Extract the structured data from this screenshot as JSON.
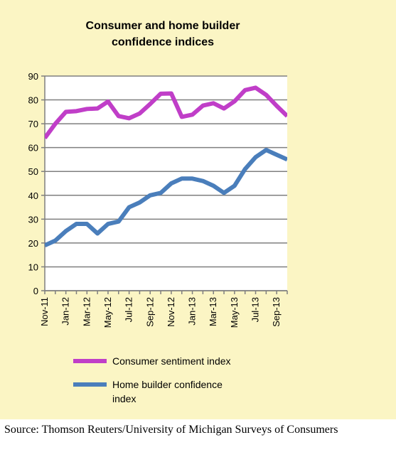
{
  "colors": {
    "background": "#fbf5c4",
    "plot_area": "#ffffff",
    "grid": "#7f7f7f",
    "consumer": "#c03ec8",
    "builder": "#4a7ebb"
  },
  "source_note": "Source: Thomson Reuters/University of Michigan Surveys of Consumers",
  "chart_data": {
    "type": "line",
    "title": "Consumer and home builder confidence indices",
    "title_lines": [
      "Consumer and home builder",
      "confidence indices"
    ],
    "xlabel": "",
    "ylabel": "",
    "ylim": [
      0,
      90
    ],
    "yticks": [
      0,
      10,
      20,
      30,
      40,
      50,
      60,
      70,
      80,
      90
    ],
    "grid": true,
    "legend_position": "bottom",
    "x": [
      "Nov-11",
      "Dec-11",
      "Jan-12",
      "Feb-12",
      "Mar-12",
      "Apr-12",
      "May-12",
      "Jun-12",
      "Jul-12",
      "Aug-12",
      "Sep-12",
      "Oct-12",
      "Nov-12",
      "Dec-12",
      "Jan-13",
      "Feb-13",
      "Mar-13",
      "Apr-13",
      "May-13",
      "Jun-13",
      "Jul-13",
      "Aug-13",
      "Sep-13",
      "Oct-13"
    ],
    "x_tick_labels": [
      "Nov-11",
      "Jan-12",
      "Mar-12",
      "May-12",
      "Jul-12",
      "Sep-12",
      "Nov-12",
      "Jan-13",
      "Mar-13",
      "May-13",
      "Jul-13",
      "Sep-13"
    ],
    "series": [
      {
        "name": "Consumer sentiment index",
        "color_key": "consumer",
        "values": [
          64,
          70,
          75,
          75.3,
          76.2,
          76.4,
          79.3,
          73.2,
          72.3,
          74.3,
          78.3,
          82.6,
          82.7,
          72.9,
          73.8,
          77.6,
          78.6,
          76.4,
          79.4,
          84.1,
          85.1,
          82.1,
          77.5,
          73.2
        ]
      },
      {
        "name": "Home builder confidence index",
        "color_key": "builder",
        "legend_lines": [
          "Home builder confidence",
          "index"
        ],
        "values": [
          19,
          21,
          25,
          28,
          28,
          24,
          28,
          29,
          35,
          37,
          40,
          41,
          45,
          47,
          47,
          46,
          44,
          41,
          44,
          51,
          56,
          59,
          57,
          55
        ]
      }
    ]
  }
}
